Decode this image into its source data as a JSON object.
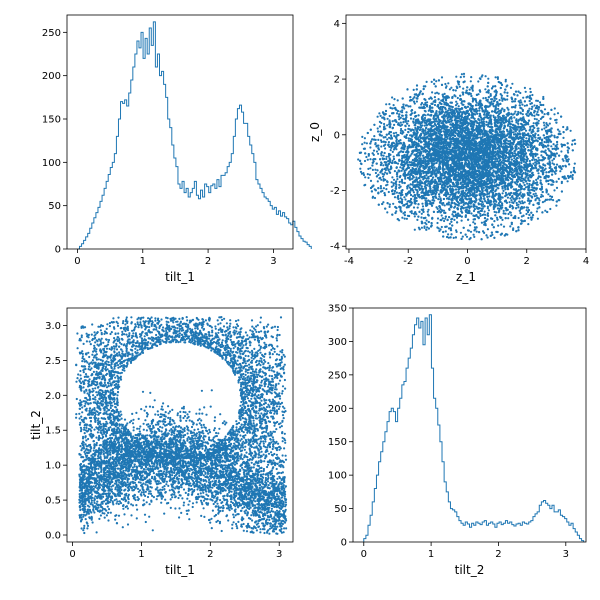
{
  "chart_data": [
    {
      "id": "tl",
      "type": "step-histogram",
      "xlabel": "tilt_1",
      "ylabel": "",
      "xlim": [
        -0.16,
        3.3
      ],
      "ylim": [
        0,
        270
      ],
      "xticks": [
        0,
        1,
        2,
        3
      ],
      "yticks": [
        0,
        50,
        100,
        150,
        200,
        250
      ],
      "color": "#1f77b4",
      "bin_start": 0.0,
      "bin_width": 0.0314,
      "values": [
        0,
        3,
        6,
        10,
        14,
        18,
        24,
        30,
        36,
        42,
        48,
        55,
        62,
        70,
        78,
        86,
        94,
        100,
        110,
        130,
        150,
        170,
        168,
        172,
        165,
        180,
        195,
        210,
        225,
        240,
        232,
        250,
        220,
        243,
        225,
        255,
        235,
        262,
        210,
        225,
        200,
        205,
        190,
        175,
        150,
        140,
        120,
        105,
        95,
        75,
        70,
        78,
        65,
        70,
        60,
        65,
        70,
        78,
        62,
        58,
        68,
        60,
        75,
        72,
        65,
        73,
        75,
        70,
        80,
        72,
        85,
        85,
        88,
        95,
        100,
        110,
        130,
        150,
        162,
        166,
        158,
        145,
        145,
        130,
        120,
        110,
        100,
        80,
        75,
        70,
        65,
        60,
        58,
        55,
        50,
        46,
        48,
        40,
        44,
        38,
        42,
        37,
        35,
        30,
        28,
        32,
        25,
        20,
        15,
        12,
        9,
        8,
        5,
        3
      ]
    },
    {
      "id": "tr",
      "type": "scatter",
      "xlabel": "z_1",
      "ylabel": "z_0",
      "xlim": [
        -4.1,
        4.0
      ],
      "ylim": [
        -4.1,
        4.3
      ],
      "xticks": [
        -4,
        -2,
        0,
        2,
        4
      ],
      "yticks": [
        -4,
        -2,
        0,
        2,
        4
      ],
      "color": "#1f77b4",
      "n_points": 9000,
      "center": [
        0.0,
        -0.8
      ],
      "spread": [
        1.6,
        1.2
      ],
      "max_radius": [
        3.7,
        3.0
      ]
    },
    {
      "id": "bl",
      "type": "scatter",
      "xlabel": "tilt_1",
      "ylabel": "tilt_2",
      "xlim": [
        -0.08,
        3.2
      ],
      "ylim": [
        -0.1,
        3.25
      ],
      "xticks": [
        0,
        1,
        2,
        3
      ],
      "yticks": [
        0.0,
        0.5,
        1.0,
        1.5,
        2.0,
        2.5,
        3.0
      ],
      "ytick_labels": [
        "0.0",
        "0.5",
        "1.0",
        "1.5",
        "2.0",
        "2.5",
        "3.0"
      ],
      "color": "#1f77b4",
      "n_points": 8000,
      "pattern": "ring around (1.55, 1.9) plus dense band near tilt_2 = 0.7"
    },
    {
      "id": "br",
      "type": "step-histogram",
      "xlabel": "tilt_2",
      "ylabel": "",
      "xlim": [
        -0.16,
        3.3
      ],
      "ylim": [
        0,
        350
      ],
      "xticks": [
        0,
        1,
        2,
        3
      ],
      "yticks": [
        0,
        50,
        100,
        150,
        200,
        250,
        300,
        350
      ],
      "color": "#1f77b4",
      "bin_start": 0.0,
      "bin_width": 0.0314,
      "values": [
        5,
        10,
        25,
        40,
        60,
        80,
        100,
        120,
        135,
        150,
        165,
        180,
        195,
        200,
        195,
        180,
        200,
        215,
        235,
        240,
        260,
        275,
        290,
        310,
        325,
        335,
        320,
        330,
        295,
        335,
        310,
        340,
        260,
        215,
        200,
        175,
        150,
        120,
        90,
        75,
        60,
        50,
        48,
        45,
        38,
        32,
        28,
        25,
        30,
        27,
        22,
        28,
        25,
        30,
        28,
        26,
        30,
        32,
        25,
        28,
        30,
        27,
        22,
        28,
        30,
        26,
        28,
        32,
        28,
        30,
        26,
        24,
        27,
        28,
        25,
        30,
        28,
        27,
        30,
        32,
        38,
        42,
        45,
        55,
        60,
        62,
        58,
        55,
        50,
        55,
        45,
        45,
        48,
        40,
        38,
        35,
        30,
        25,
        28,
        20,
        15,
        10,
        5,
        2
      ]
    }
  ]
}
